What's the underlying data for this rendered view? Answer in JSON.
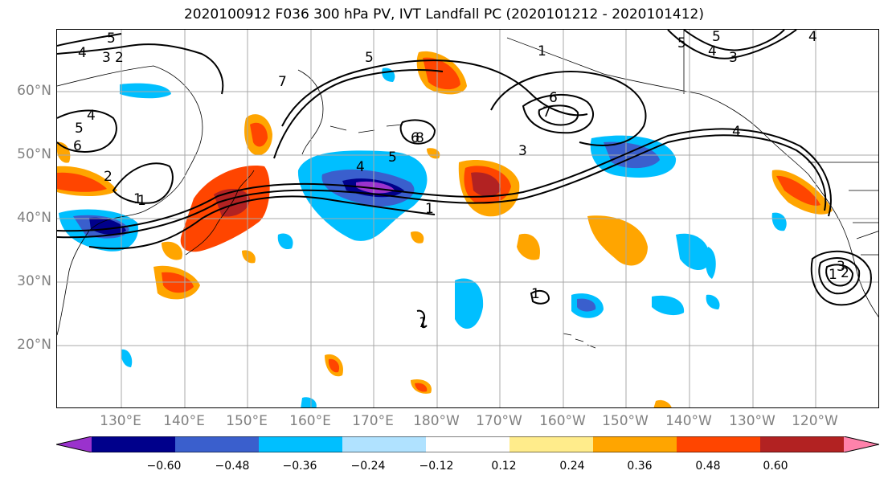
{
  "title": "2020100912 F036 300 hPa PV, IVT Landfall PC (2020101212 - 2020101412)",
  "lat_labels": [
    "60°N",
    "50°N",
    "40°N",
    "30°N",
    "20°N"
  ],
  "lon_labels": [
    "130°E",
    "140°E",
    "150°E",
    "160°E",
    "170°E",
    "180°W",
    "170°W",
    "160°W",
    "150°W",
    "140°W",
    "130°W",
    "120°W"
  ],
  "colorbar": {
    "ticks": [
      "−0.60",
      "−0.48",
      "−0.36",
      "−0.24",
      "−0.12",
      "0.12",
      "0.24",
      "0.36",
      "0.48",
      "0.60"
    ],
    "colors": [
      "#9a32cd",
      "#00008b",
      "#3a5fcd",
      "#00bfff",
      "#b0e2ff",
      "#ffffff",
      "#ffec8b",
      "#ffa500",
      "#ff4500",
      "#b22222",
      "#ff82ab"
    ]
  },
  "contour_labels": [
    "5",
    "4",
    "3",
    "2",
    "7",
    "1",
    "4",
    "5",
    "6",
    "2",
    "1",
    "4",
    "5",
    "6",
    "8",
    "5",
    "1",
    "7",
    "6",
    "5",
    "4",
    "3",
    "4",
    "3",
    "1",
    "1",
    "1",
    "5",
    "4",
    "3",
    "2",
    "1"
  ],
  "colors": {
    "grid": "#a9a9a9",
    "axis_label": "#808080",
    "contour": "#000000"
  }
}
